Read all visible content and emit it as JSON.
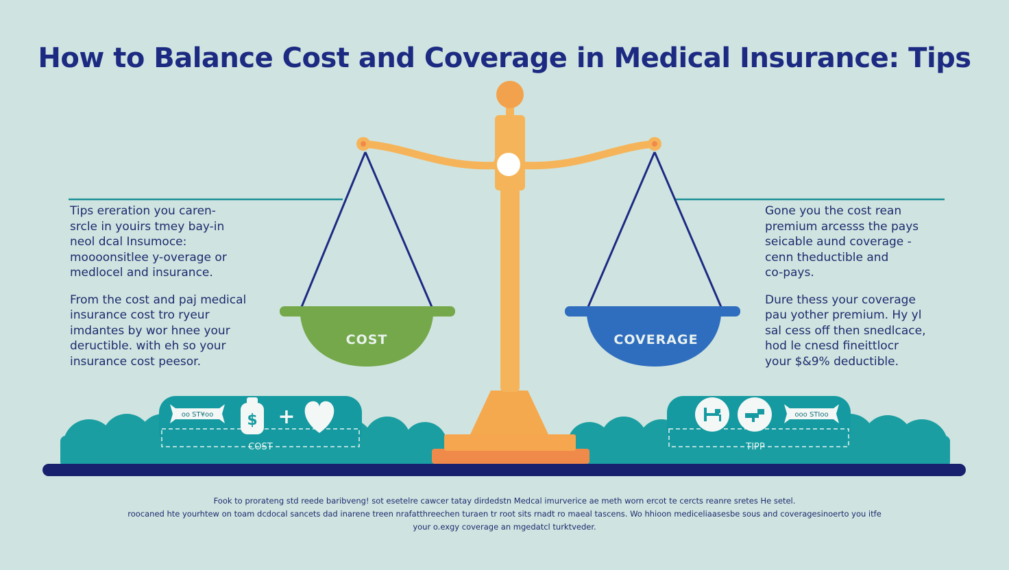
{
  "title": "How to Balance Cost and Coverage in Medical Insurance: Tips",
  "left_text": {
    "para1": [
      "Tips ereration you caren-",
      "srcle in youirs tmey bay-in",
      "neol dcal Insumoce:",
      "moooonsitlee y-overage or",
      "medlocel and insurance."
    ],
    "para2": [
      "From the cost and paj medical",
      "insurance cost tro ryeur",
      "imdantes by wor hnee your",
      "deructible. with eh so your",
      "insurance cost peesor."
    ]
  },
  "right_text": {
    "para1": [
      "Gone you the cost rean",
      "premium arcesss the pays",
      "seicable aund coverage -",
      "cenn theductible and",
      "co-pays."
    ],
    "para2": [
      "Dure thess your coverage",
      "pau yother premium. Hy yl",
      "sal cess off then snedlcace,",
      "hod le cnesd fineittlocr",
      "your $&9% deductible."
    ]
  },
  "scale": {
    "left_pan_label": "COST",
    "right_pan_label": "COVERAGE"
  },
  "bottom_boxes": {
    "left_label": "COST",
    "left_badge_text": "oo ST¥oo",
    "plus_symbol": "+",
    "right_label": "TIPP",
    "right_badge_text": "ooo STIoo"
  },
  "icons": {
    "left_box": [
      "bandage-badge-icon",
      "money-bag-icon",
      "plus-icon",
      "heart-icon"
    ],
    "right_box": [
      "bed-icon",
      "syringe-icon",
      "bandage-badge-icon"
    ]
  },
  "footer": [
    "Fook to prorateng std reede baribveng! sot esetelre cawcer tatay dirdedstn Medcal imurverice ae meth worn ercot te cercts reanre sretes He setel.",
    "roocaned hte yourhtew on toam dcdocal sancets dad inarene treen nrafatthreechen turaen tr root sits rnadt ro maeal tascens. Wo hhioon mediceliaasesbe sous and coveragesinoerto you itfe",
    "your o.exgy coverage an mgedatcl turktveder."
  ],
  "colors": {
    "background": "#cfe4e0",
    "title": "#1c2a82",
    "text": "#1c2a6e",
    "scale_gold": "#f5b45a",
    "cost_green": "#74a84a",
    "coverage_blue": "#2f6dbf",
    "teal": "#1a9ea2",
    "baseline_navy": "#18216e"
  }
}
